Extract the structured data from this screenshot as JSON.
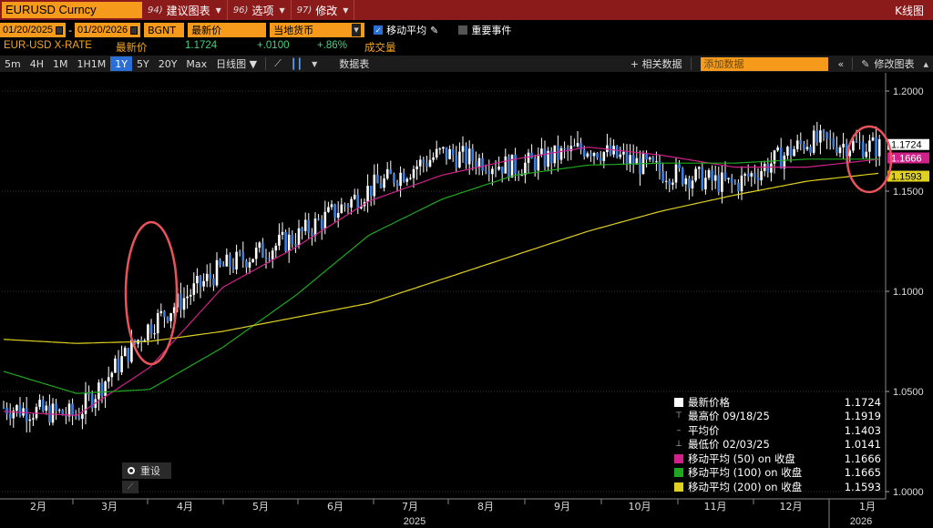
{
  "titlebar": {
    "ticker": "EURUSD Curncy",
    "buttons": [
      {
        "num": "94)",
        "label": "建议图表"
      },
      {
        "num": "96)",
        "label": "选项"
      },
      {
        "num": "97)",
        "label": "修改"
      }
    ],
    "right_title": "K线图"
  },
  "controls": {
    "start_date": "01/20/2025",
    "end_date": "01/20/2026",
    "source": "BGNT",
    "field": "最新价",
    "currency": "当地货币",
    "moving_avg_label": "移动平均",
    "moving_avg_checked": true,
    "events_label": "重要事件",
    "events_checked": false
  },
  "security": {
    "name": "EUR-USD X-RATE",
    "last_label": "最新价",
    "last": "1.1724",
    "change": "+.0100",
    "change_pct": "+.86%",
    "volume_label": "成交量"
  },
  "toolbar": {
    "periods": [
      "5m",
      "4H",
      "1M",
      "1H1M",
      "1Y",
      "5Y",
      "20Y",
      "Max"
    ],
    "active_period": "1Y",
    "chart_type": "日线图 ▼",
    "table_label": "数据表",
    "related_label": "+ 相关数据",
    "add_data_placeholder": "添加数据",
    "edit_chart_label": "修改图表"
  },
  "colors": {
    "candle": "#3a7fe0",
    "ma50": "#d0208a",
    "ma100": "#1fa81f",
    "ma200": "#e0d020",
    "last_tag": "#ffffff",
    "circle": "#e8545a"
  },
  "chart_data": {
    "type": "line",
    "title": "EURUSD Curncy",
    "x_labels": [
      "2月",
      "3月",
      "4月",
      "5月",
      "6月",
      "7月",
      "8月",
      "9月",
      "10月",
      "11月",
      "12月",
      "1月"
    ],
    "year_labels": [
      "2025",
      "2026"
    ],
    "y_ticks": [
      "1.2000",
      "1.1500",
      "1.1000",
      "1.0500",
      "1.0000"
    ],
    "ylim": [
      1.0,
      1.2
    ],
    "series": [
      {
        "name": "最新价格",
        "x": [
          "2025-01",
          "2025-02",
          "2025-03",
          "2025-04",
          "2025-05",
          "2025-06",
          "2025-07",
          "2025-08",
          "2025-09",
          "2025-10",
          "2025-11",
          "2025-12",
          "2026-01"
        ],
        "values": [
          1.042,
          1.038,
          1.083,
          1.112,
          1.127,
          1.151,
          1.169,
          1.162,
          1.172,
          1.16,
          1.153,
          1.175,
          1.172
        ]
      },
      {
        "name": "移动平均 (50) on 收盘",
        "x": [
          "2025-01",
          "2025-02",
          "2025-03",
          "2025-04",
          "2025-05",
          "2025-06",
          "2025-07",
          "2025-08",
          "2025-09",
          "2025-10",
          "2025-11",
          "2025-12",
          "2026-01"
        ],
        "values": [
          1.04,
          1.038,
          1.062,
          1.102,
          1.122,
          1.145,
          1.158,
          1.166,
          1.172,
          1.168,
          1.162,
          1.162,
          1.166
        ]
      },
      {
        "name": "移动平均 (100) on 收盘",
        "x": [
          "2025-01",
          "2025-02",
          "2025-03",
          "2025-04",
          "2025-05",
          "2025-06",
          "2025-07",
          "2025-08",
          "2025-09",
          "2025-10",
          "2025-11",
          "2025-12",
          "2026-01"
        ],
        "values": [
          1.06,
          1.049,
          1.051,
          1.072,
          1.098,
          1.128,
          1.146,
          1.158,
          1.163,
          1.164,
          1.164,
          1.166,
          1.166
        ]
      },
      {
        "name": "移动平均 (200) on 收盘",
        "x": [
          "2025-01",
          "2025-02",
          "2025-03",
          "2025-04",
          "2025-05",
          "2025-06",
          "2025-07",
          "2025-08",
          "2025-09",
          "2025-10",
          "2025-11",
          "2025-12",
          "2026-01"
        ],
        "values": [
          1.076,
          1.074,
          1.075,
          1.08,
          1.087,
          1.094,
          1.106,
          1.118,
          1.13,
          1.14,
          1.148,
          1.155,
          1.159
        ]
      }
    ],
    "price_tags": [
      "1.1724",
      "1.1666",
      "1.1593"
    ],
    "legend_position": "bottom-right",
    "grid": true
  },
  "legend": [
    {
      "label": "最新价格",
      "value": "1.1724",
      "symbol": "white-box"
    },
    {
      "label": "最高价 09/18/25",
      "value": "1.1919",
      "symbol": "high-marker"
    },
    {
      "label": "平均价",
      "value": "1.1403",
      "symbol": "avg-marker"
    },
    {
      "label": "最低价 02/03/25",
      "value": "1.0141",
      "symbol": "low-marker"
    },
    {
      "label": "移动平均 (50) on 收盘",
      "value": "1.1666",
      "symbol": "magenta-box"
    },
    {
      "label": "移动平均 (100) on 收盘",
      "value": "1.1665",
      "symbol": "green-box"
    },
    {
      "label": "移动平均 (200) on 收盘",
      "value": "1.1593",
      "symbol": "yellow-box"
    }
  ],
  "reset_label": "重设"
}
